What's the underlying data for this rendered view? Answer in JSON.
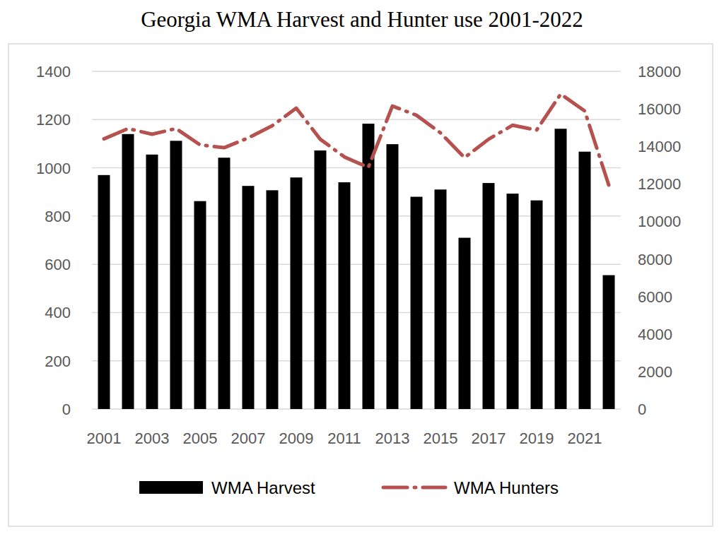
{
  "chart_data": {
    "type": "bar",
    "title": "Georgia WMA Harvest and Hunter use 2001-2022",
    "categories": [
      "2001",
      null,
      "2003",
      null,
      "2005",
      null,
      "2007",
      null,
      "2009",
      null,
      "2011",
      null,
      "2013",
      null,
      "2015",
      null,
      "2017",
      null,
      "2019",
      null,
      "2021",
      null
    ],
    "series": [
      {
        "name": "WMA Harvest",
        "type": "bar",
        "color": "#000000",
        "values": [
          970,
          1140,
          1055,
          1112,
          862,
          1042,
          925,
          907,
          960,
          1072,
          940,
          1183,
          1098,
          880,
          910,
          710,
          937,
          893,
          865,
          1162,
          1067,
          555
        ]
      },
      {
        "name": "WMA Hunters",
        "type": "line",
        "color": "#b5524f",
        "axis": "y2",
        "line_style": "dash-dot",
        "values": [
          14400,
          14950,
          14650,
          14950,
          14080,
          13930,
          14450,
          15100,
          16040,
          14380,
          13440,
          12880,
          16150,
          15660,
          14720,
          13400,
          14380,
          15130,
          14870,
          16790,
          15890,
          11940
        ]
      }
    ],
    "ylim": [
      0,
      1400
    ],
    "yticks": [
      0,
      200,
      400,
      600,
      800,
      1000,
      1200,
      1400
    ],
    "y2lim": [
      0,
      18000
    ],
    "y2ticks": [
      0,
      2000,
      4000,
      6000,
      8000,
      10000,
      12000,
      14000,
      16000,
      18000
    ],
    "grid": true,
    "legend": "bottom"
  }
}
